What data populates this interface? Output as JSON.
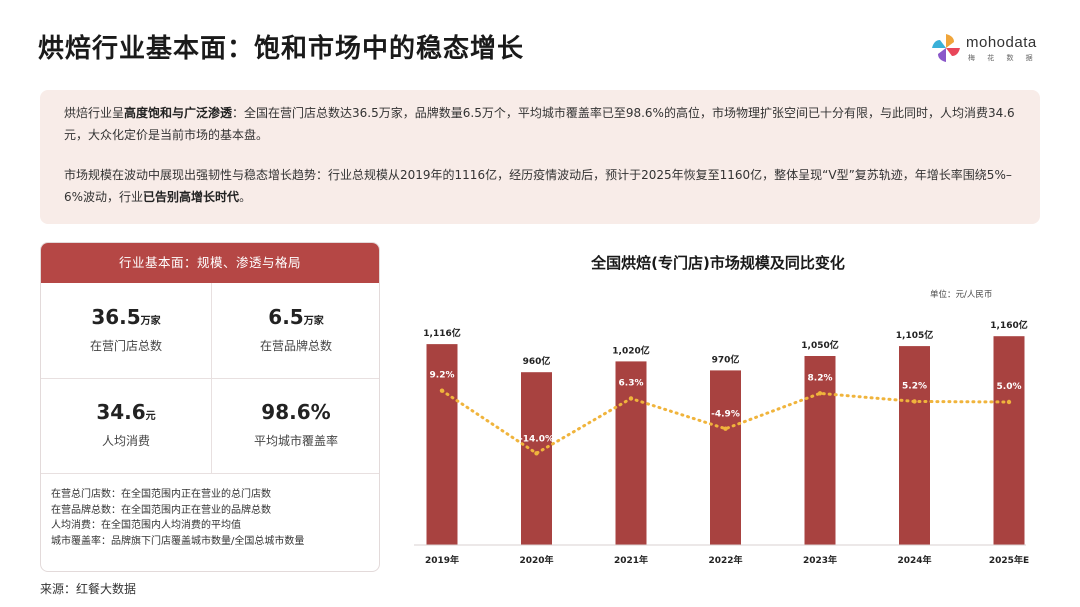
{
  "title": "烘焙行业基本面：饱和市场中的稳态增长",
  "logo": {
    "text": "mohodata",
    "subtext": "梅 花 数 据"
  },
  "summary": {
    "p1_a": "烘焙行业呈",
    "p1_b": "高度饱和与广泛渗透",
    "p1_c": "：全国在营门店总数达36.5万家，品牌数量6.5万个，平均城市覆盖率已至98.6%的高位，市场物理扩张空间已十分有限，与此同时，人均消费34.6元，大众化定价是当前市场的基本盘。",
    "p2_a": "市场规模在波动中展现出强韧性与稳态增长趋势：行业总规模从2019年的1116亿，经历疫情波动后，预计于2025年恢复至1160亿，整体呈现“V型”复苏轨迹，年增长率围绕5%–6%波动，行业",
    "p2_b": "已告别高增长时代",
    "p2_c": "。"
  },
  "card": {
    "header": "行业基本面：规模、渗透与格局",
    "stats": [
      {
        "value": "36.5",
        "unit": "万家",
        "label": "在营门店总数"
      },
      {
        "value": "6.5",
        "unit": "万家",
        "label": "在营品牌总数"
      },
      {
        "value": "34.6",
        "unit": "元",
        "label": "人均消费"
      },
      {
        "value": "98.6%",
        "unit": "",
        "label": "平均城市覆盖率"
      }
    ],
    "definitions": [
      "在营总门店数：在全国范围内正在营业的总门店数",
      "在营品牌总数：在全国范围内正在营业的品牌总数",
      "人均消费：在全国范围内人均消费的平均值",
      "城市覆盖率：品牌旗下门店覆盖城市数量/全国总城市数量"
    ]
  },
  "source": "来源：红餐大数据",
  "chart_data": {
    "type": "bar",
    "title": "全国烘焙(专门店)市场规模及同比变化",
    "unit_note": "单位：元/人民币",
    "categories": [
      "2019年",
      "2020年",
      "2021年",
      "2022年",
      "2023年",
      "2024年",
      "2025年E"
    ],
    "series": [
      {
        "values": [
          1116,
          960,
          1020,
          970,
          1050,
          1105,
          1160
        ],
        "labels": [
          "1,116亿",
          "960亿",
          "1,020亿",
          "970亿",
          "1,050亿",
          "1,105亿",
          "1,160亿"
        ]
      },
      {
        "type": "line",
        "values": [
          9.2,
          -14.0,
          6.3,
          -4.9,
          8.2,
          5.2,
          5.0
        ],
        "labels": [
          "9.2%",
          "-14.0%",
          "6.3%",
          "-4.9%",
          "8.2%",
          "5.2%",
          "5.0%"
        ]
      }
    ],
    "colors": {
      "bar": "#a84240",
      "line": "#f0b43c"
    }
  }
}
